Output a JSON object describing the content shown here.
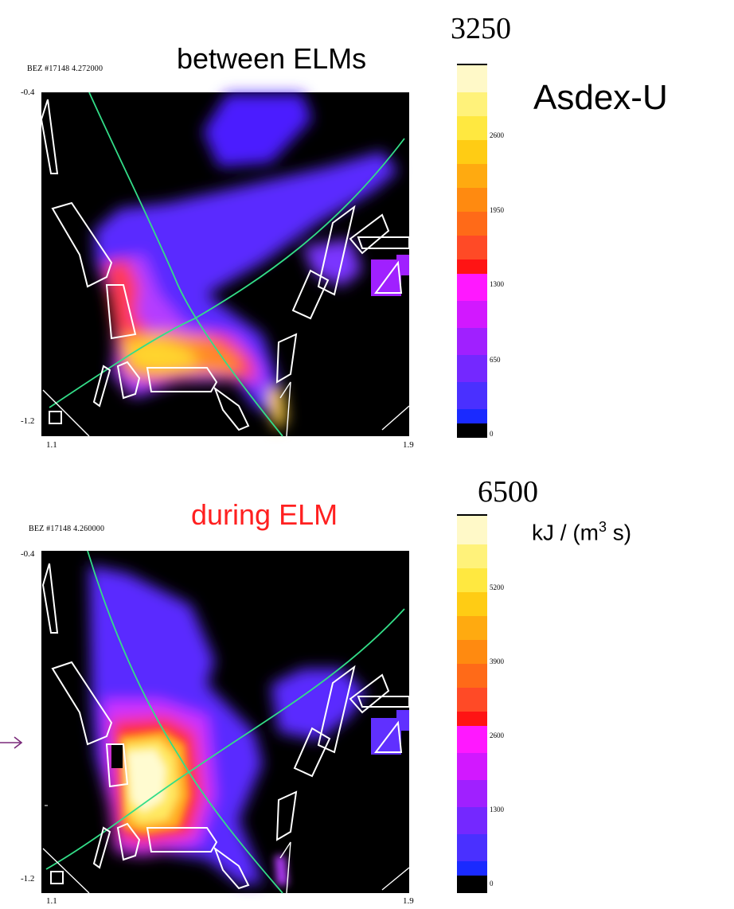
{
  "page": {
    "brand": "Asdex-U",
    "unit": "kJ / (m",
    "unit_sup": "3",
    "unit_tail": " s)"
  },
  "chart_data": [
    {
      "type": "heatmap",
      "title": "between ELMs",
      "label": "BEZ #17148 4.272000",
      "xticks": [
        "1.1",
        "1.9"
      ],
      "yticks": [
        "-0.4",
        "-1.2"
      ],
      "xlim": [
        1.1,
        1.9
      ],
      "ylim": [
        -1.2,
        -0.4
      ],
      "colorbar": {
        "max_label": "3250",
        "ticks": [
          "2600",
          "1950",
          "1300",
          "650",
          "0"
        ],
        "range": [
          0,
          3250
        ]
      }
    },
    {
      "type": "heatmap",
      "title": "during ELM",
      "label": "BEZ #17148 4.260000",
      "xticks": [
        "1.1",
        "1.9"
      ],
      "yticks": [
        "-0.4",
        "-1.2"
      ],
      "xlim": [
        1.1,
        1.9
      ],
      "ylim": [
        -1.2,
        -0.4
      ],
      "colorbar": {
        "max_label": "6500",
        "ticks": [
          "5200",
          "3900",
          "2600",
          "1300",
          "0"
        ],
        "range": [
          0,
          6500
        ]
      }
    }
  ],
  "colors": {
    "title_top": "#000000",
    "title_bottom": "#ff2020",
    "separatrix": "#33dd88",
    "arrow": "#7a2a7a"
  }
}
